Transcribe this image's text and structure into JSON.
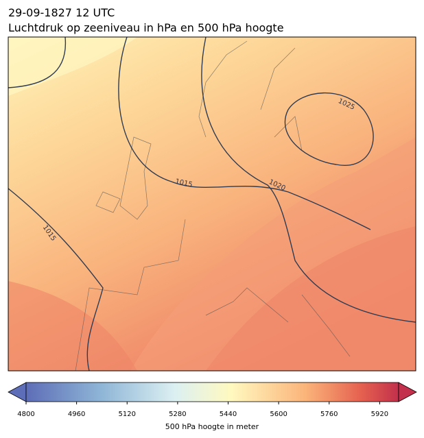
{
  "header": {
    "title": "29-09-1827 12 UTC",
    "subtitle": "Luchtdruk op zeeniveau in hPa en 500 hPa hoogte"
  },
  "map": {
    "contour_labels": [
      "1025",
      "1015",
      "1020",
      "1015"
    ]
  },
  "colorbar": {
    "lim": [
      4800,
      5980
    ],
    "ticks": [
      4800,
      4960,
      5120,
      5280,
      5440,
      5600,
      5760,
      5920
    ],
    "label": "500 hPa hoogte in meter"
  }
}
